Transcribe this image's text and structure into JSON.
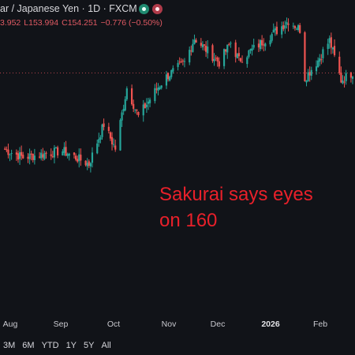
{
  "header": {
    "title": "ar / Japanese Yen · 1D · FXCM",
    "ohlc": {
      "open_partial": "3.952",
      "low_label": "L",
      "low": "153.994",
      "close_label": "C",
      "close": "154.251",
      "change": "−0.776 (−0.50%)"
    }
  },
  "colors": {
    "up": "#26a69a",
    "down": "#ef5350",
    "annotation": "#e8202a",
    "background": "#111318"
  },
  "annotation": {
    "text": "Sakurai says eyes on 160"
  },
  "x_axis": {
    "labels": [
      "Aug",
      "Sep",
      "Oct",
      "Nov",
      "Dec",
      "2026",
      "Feb"
    ],
    "bold_label": "2026"
  },
  "range_buttons": [
    "3M",
    "6M",
    "YTD",
    "1Y",
    "5Y",
    "All"
  ],
  "chart_data": {
    "type": "candlestick",
    "title": "",
    "series_name": "",
    "price_line": 154.25,
    "ylim": [
      138,
      158
    ],
    "segments": [
      {
        "from": "Jul 25",
        "to": "Aug 8",
        "start": 147.5,
        "end": 146.6
      },
      {
        "from": "Aug 8",
        "to": "Sep 1",
        "start": 146.6,
        "end": 147.2
      },
      {
        "from": "Sep 1",
        "to": "Sep 17",
        "start": 147.2,
        "end": 146.0
      },
      {
        "from": "Sep 17",
        "to": "Sep 26",
        "start": 146.0,
        "end": 149.6
      },
      {
        "from": "Sep 26",
        "to": "Oct 3",
        "start": 149.6,
        "end": 147.4
      },
      {
        "from": "Oct 3",
        "to": "Oct 10",
        "start": 147.4,
        "end": 152.9
      },
      {
        "from": "Oct 10",
        "to": "Oct 17",
        "start": 152.9,
        "end": 150.3
      },
      {
        "from": "Oct 17",
        "to": "Oct 28",
        "start": 150.3,
        "end": 152.8
      },
      {
        "from": "Oct 28",
        "to": "Nov 3",
        "start": 152.8,
        "end": 153.9
      },
      {
        "from": "Nov 3",
        "to": "Nov 14",
        "start": 153.9,
        "end": 155.2
      },
      {
        "from": "Nov 14",
        "to": "Nov 20",
        "start": 155.2,
        "end": 157.4
      },
      {
        "from": "Nov 20",
        "to": "Dec 5",
        "start": 157.4,
        "end": 155.2
      },
      {
        "from": "Dec 5",
        "to": "Dec 12",
        "start": 155.2,
        "end": 157.0
      },
      {
        "from": "Dec 12",
        "to": "Dec 17",
        "start": 157.0,
        "end": 155.4
      },
      {
        "from": "Dec 17",
        "to": "Jan 9",
        "start": 155.4,
        "end": 158.1
      },
      {
        "from": "Jan 9",
        "to": "Jan 16",
        "start": 158.1,
        "end": 159.0
      },
      {
        "from": "Jan 16",
        "to": "Jan 23",
        "start": 159.0,
        "end": 158.2
      },
      {
        "from": "Jan 23",
        "to": "Jan 26",
        "start": 158.2,
        "end": 153.8
      },
      {
        "from": "Jan 26",
        "to": "Feb 3",
        "start": 153.8,
        "end": 155.4
      },
      {
        "from": "Feb 3",
        "to": "Feb 10",
        "start": 155.4,
        "end": 157.2
      },
      {
        "from": "Feb 10",
        "to": "Feb 17",
        "start": 157.2,
        "end": 153.6
      },
      {
        "from": "Feb 17",
        "to": "Feb 24",
        "start": 153.6,
        "end": 154.3
      }
    ]
  }
}
